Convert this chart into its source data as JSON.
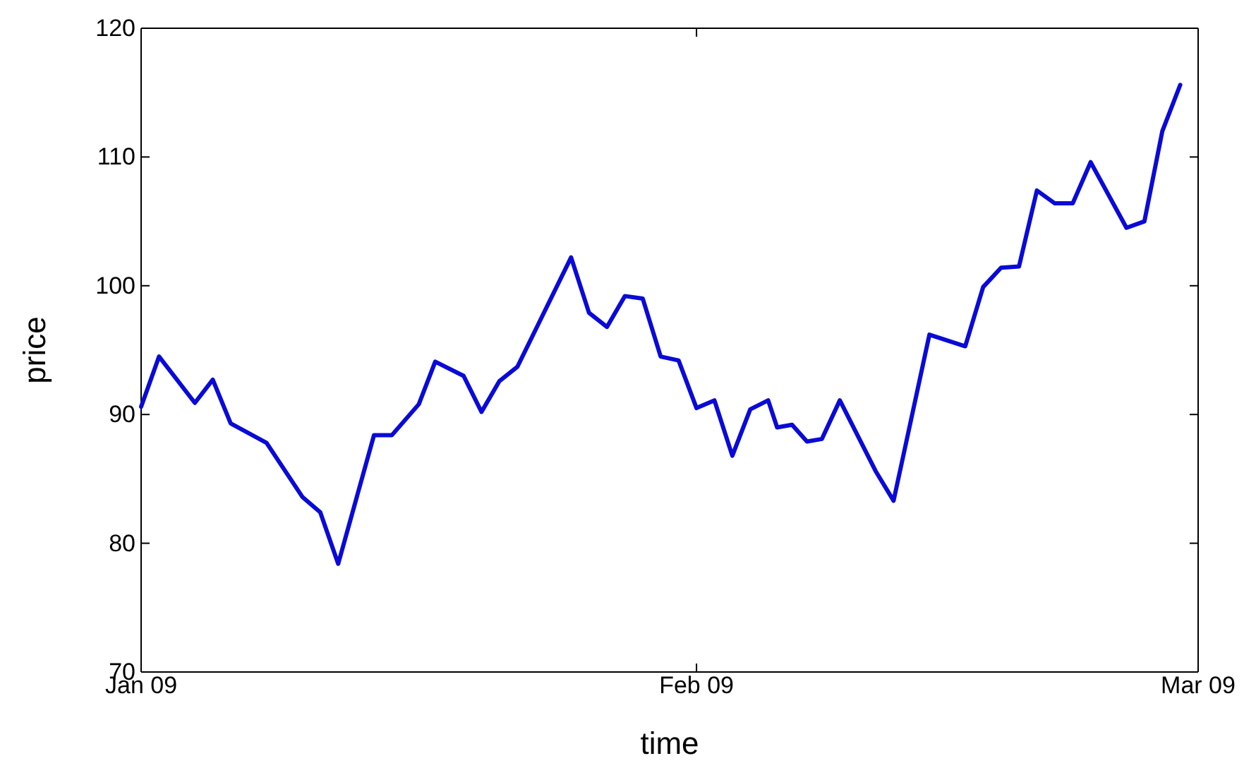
{
  "chart_data": {
    "type": "line",
    "xlabel": "time",
    "ylabel": "price",
    "x": [
      "2009-01-01",
      "2009-01-02",
      "2009-01-04",
      "2009-01-05",
      "2009-01-06",
      "2009-01-08",
      "2009-01-10",
      "2009-01-11",
      "2009-01-12",
      "2009-01-14",
      "2009-01-15",
      "2009-01-16T12:00",
      "2009-01-17T10:00",
      "2009-01-19",
      "2009-01-20",
      "2009-01-21",
      "2009-01-22",
      "2009-01-25",
      "2009-01-26",
      "2009-01-27",
      "2009-01-28",
      "2009-01-29",
      "2009-01-30",
      "2009-01-31",
      "2009-02-01",
      "2009-02-02",
      "2009-02-03",
      "2009-02-04",
      "2009-02-05",
      "2009-02-05T12:00",
      "2009-02-06T08:00",
      "2009-02-07T04:00",
      "2009-02-08",
      "2009-02-09",
      "2009-02-11",
      "2009-02-12",
      "2009-02-14",
      "2009-02-16",
      "2009-02-17",
      "2009-02-18",
      "2009-02-19",
      "2009-02-20",
      "2009-02-21",
      "2009-02-22",
      "2009-02-23",
      "2009-02-25",
      "2009-02-26",
      "2009-02-27",
      "2009-02-28"
    ],
    "series": [
      {
        "color": "#0a0ad8",
        "values": [
          90.6,
          94.5,
          90.9,
          92.7,
          89.3,
          87.8,
          83.6,
          82.4,
          78.4,
          88.4,
          88.4,
          90.8,
          94.1,
          93.0,
          90.2,
          92.6,
          93.7,
          102.2,
          97.9,
          96.8,
          99.2,
          99.0,
          94.5,
          94.2,
          90.5,
          91.1,
          86.8,
          90.4,
          91.1,
          89.0,
          89.2,
          87.9,
          88.1,
          91.1,
          85.6,
          83.3,
          96.2,
          95.3,
          99.9,
          101.4,
          101.5,
          107.4,
          106.4,
          106.4,
          109.6,
          104.5,
          105.0,
          112.0,
          115.6
        ]
      }
    ],
    "xlim": [
      "2009-01-01",
      "2009-03-01"
    ],
    "xticks": [
      {
        "value": "2009-01-01",
        "label": "Jan 09"
      },
      {
        "value": "2009-02-01",
        "label": "Feb 09"
      },
      {
        "value": "2009-03-01",
        "label": "Mar 09"
      }
    ],
    "ylim": [
      70,
      120
    ],
    "yticks": [
      70,
      80,
      90,
      100,
      110,
      120
    ],
    "grid": false,
    "marker": "none",
    "line_style": "solid"
  }
}
